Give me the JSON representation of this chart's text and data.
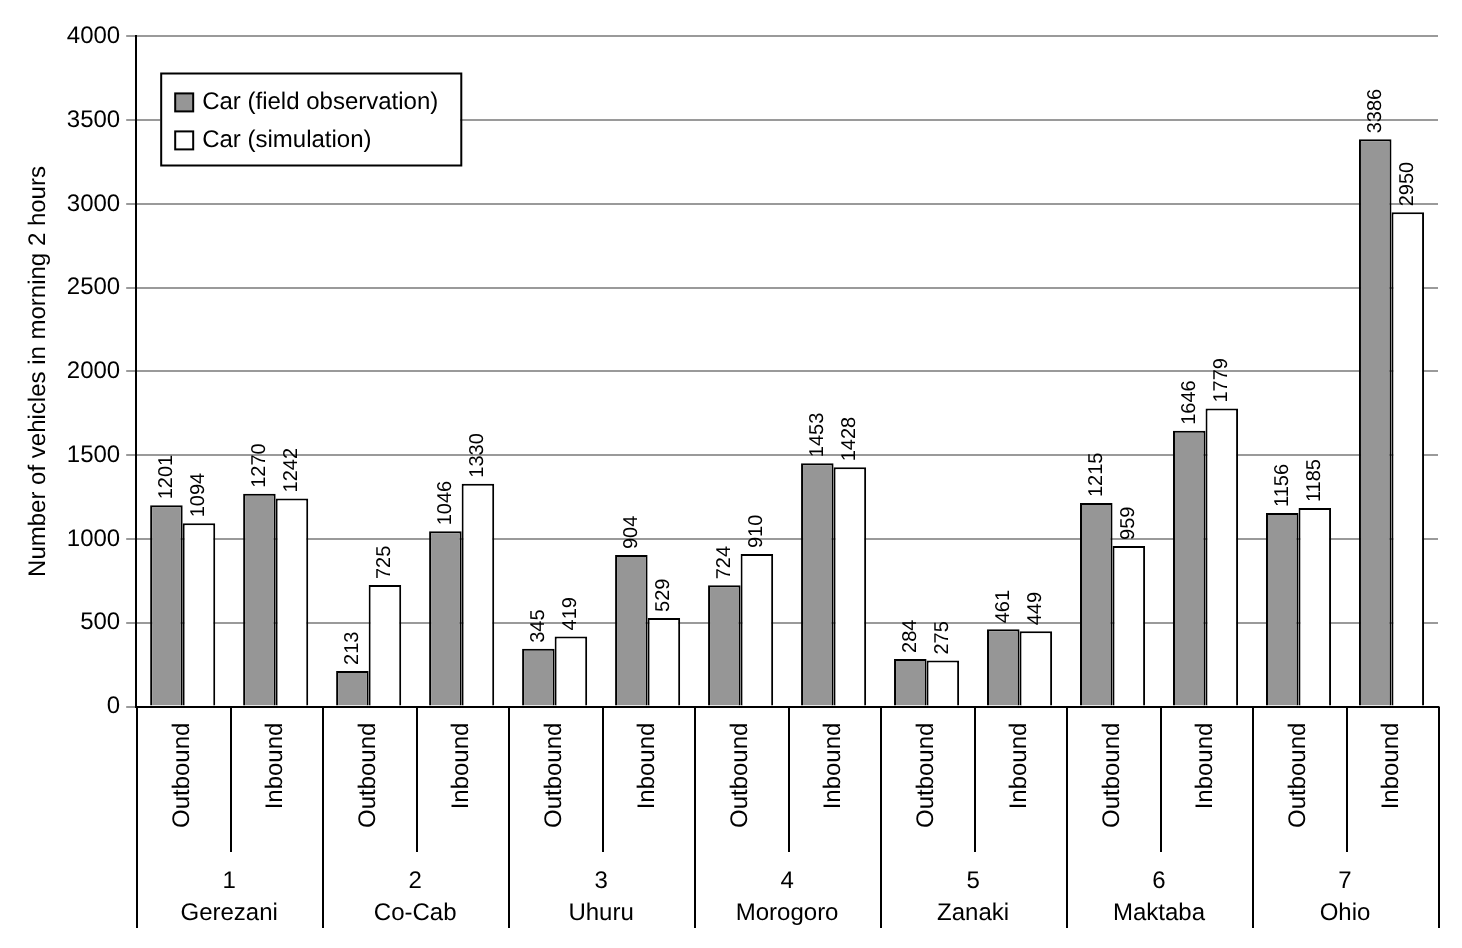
{
  "chart_data": {
    "type": "bar",
    "ylabel": "Number of vehicles in morning 2 hours",
    "categories": [
      "Outbound",
      "Inbound",
      "Outbound",
      "Inbound",
      "Outbound",
      "Inbound",
      "Outbound",
      "Inbound",
      "Outbound",
      "Inbound",
      "Outbound",
      "Inbound",
      "Outbound",
      "Inbound"
    ],
    "series": [
      {
        "name": "Car (field observation)",
        "color": "#969696",
        "values": [
          1201,
          1270,
          213,
          1046,
          345,
          904,
          724,
          1453,
          284,
          461,
          1215,
          1646,
          1156,
          3386
        ]
      },
      {
        "name": "Car (simulation)",
        "color": "#ffffff",
        "values": [
          1094,
          1242,
          725,
          1330,
          419,
          529,
          910,
          1428,
          275,
          449,
          959,
          1779,
          1185,
          2950
        ]
      }
    ],
    "ylim": [
      0,
      4000
    ],
    "yticks": [
      0,
      500,
      1000,
      1500,
      2000,
      2500,
      3000,
      3500,
      4000
    ],
    "grid": "y",
    "legend": "top left",
    "data_labels": true,
    "annotations": [
      "1\nGerezani",
      "2\nCo-Cab",
      "3\nUhuru",
      "4\nMorogoro",
      "5\nZanaki",
      "6\nMaktaba",
      "7\nOhio"
    ]
  }
}
